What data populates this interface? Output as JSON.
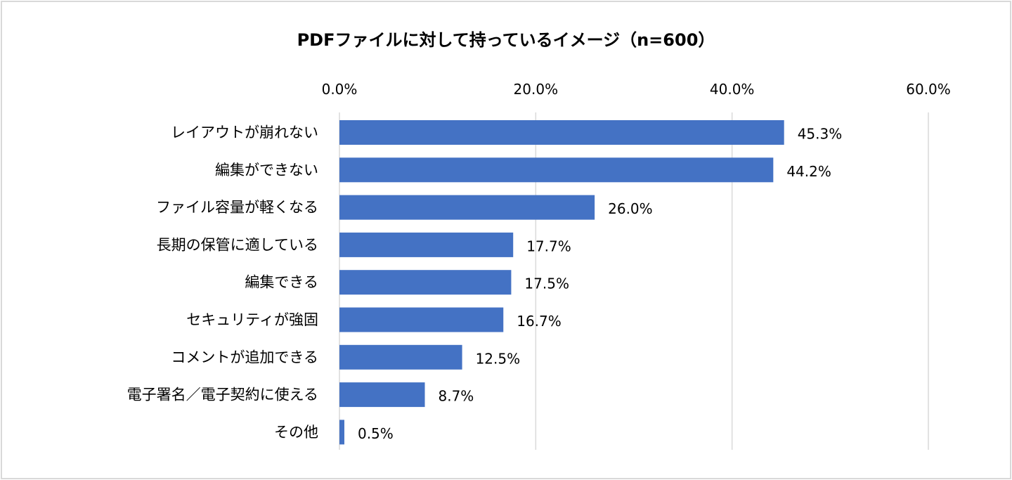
{
  "chart_data": {
    "type": "bar",
    "orientation": "horizontal",
    "title": "PDFファイルに対して持っているイメージ（n=600）",
    "categories": [
      "レイアウトが崩れない",
      "編集ができない",
      "ファイル容量が軽くなる",
      "長期の保管に適している",
      "編集できる",
      "セキュリティが強固",
      "コメントが追加できる",
      "電子署名／電子契約に使える",
      "その他"
    ],
    "values": [
      45.3,
      44.2,
      26.0,
      17.7,
      17.5,
      16.7,
      12.5,
      8.7,
      0.5
    ],
    "data_labels": [
      "45.3%",
      "44.2%",
      "26.0%",
      "17.7%",
      "17.5%",
      "16.7%",
      "12.5%",
      "8.7%",
      "0.5%"
    ],
    "xticks": [
      "0.0%",
      "20.0%",
      "40.0%",
      "60.0%"
    ],
    "xlim": [
      0,
      60
    ],
    "xaxis_position": "top",
    "grid": true,
    "legend": "none",
    "bar_color": "#4472C4"
  }
}
